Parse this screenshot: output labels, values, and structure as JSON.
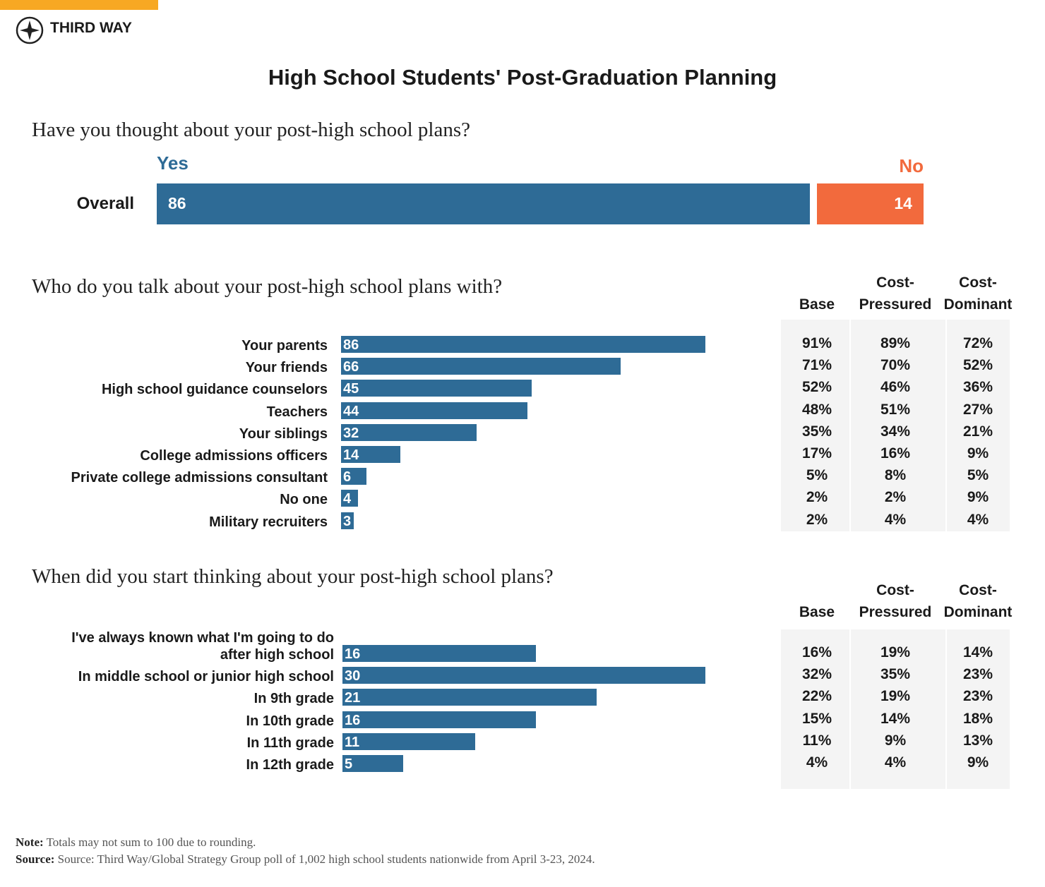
{
  "header": {
    "brand": "THIRD WAY",
    "title": "High School Students' Post-Graduation Planning"
  },
  "chart_data": [
    {
      "type": "stacked_bar",
      "title": "Have you thought about your post-high school plans?",
      "categories": [
        "Overall"
      ],
      "series": [
        {
          "name": "Yes",
          "color": "#2e6b96",
          "values": [
            86
          ]
        },
        {
          "name": "No",
          "color": "#f26a3d",
          "values": [
            14
          ]
        }
      ]
    },
    {
      "type": "bar",
      "title": "Who do you talk about your post-high school plans with?",
      "categories": [
        "Your parents",
        "Your friends",
        "High school guidance counselors",
        "Teachers",
        "Your siblings",
        "College admissions officers",
        "Private college admissions consultant",
        "No one",
        "Military recruiters"
      ],
      "values": [
        86,
        66,
        45,
        44,
        32,
        14,
        6,
        4,
        3
      ],
      "color": "#2e6b96"
    },
    {
      "type": "bar",
      "title": "When did you start thinking about your post-high school plans?",
      "categories": [
        "I've always known what I'm going to do after high school",
        "In middle school or junior high school",
        "In 9th grade",
        "In 10th grade",
        "In 11th grade",
        "In 12th grade"
      ],
      "values": [
        16,
        30,
        21,
        16,
        11,
        5
      ],
      "color": "#2e6b96"
    }
  ],
  "tables": [
    {
      "columns": [
        "Base",
        "Cost-Pressured",
        "Cost-Dominant"
      ],
      "rows": [
        [
          "91%",
          "89%",
          "72%"
        ],
        [
          "71%",
          "70%",
          "52%"
        ],
        [
          "52%",
          "46%",
          "36%"
        ],
        [
          "48%",
          "51%",
          "27%"
        ],
        [
          "35%",
          "34%",
          "21%"
        ],
        [
          "17%",
          "16%",
          "9%"
        ],
        [
          "5%",
          "8%",
          "5%"
        ],
        [
          "2%",
          "2%",
          "9%"
        ],
        [
          "2%",
          "4%",
          "4%"
        ]
      ]
    },
    {
      "columns": [
        "Base",
        "Cost-Pressured",
        "Cost-Dominant"
      ],
      "rows": [
        [
          "16%",
          "19%",
          "14%"
        ],
        [
          "32%",
          "35%",
          "23%"
        ],
        [
          "22%",
          "19%",
          "23%"
        ],
        [
          "15%",
          "14%",
          "18%"
        ],
        [
          "11%",
          "9%",
          "13%"
        ],
        [
          "4%",
          "4%",
          "9%"
        ]
      ]
    }
  ],
  "footer": {
    "note_label": "Note:",
    "note": "Totals may not sum to 100 due to rounding.",
    "source_label": "Source:",
    "source": "Source: Third Way/Global Strategy Group poll of 1,002 high school students nationwide from April 3-23, 2024."
  }
}
